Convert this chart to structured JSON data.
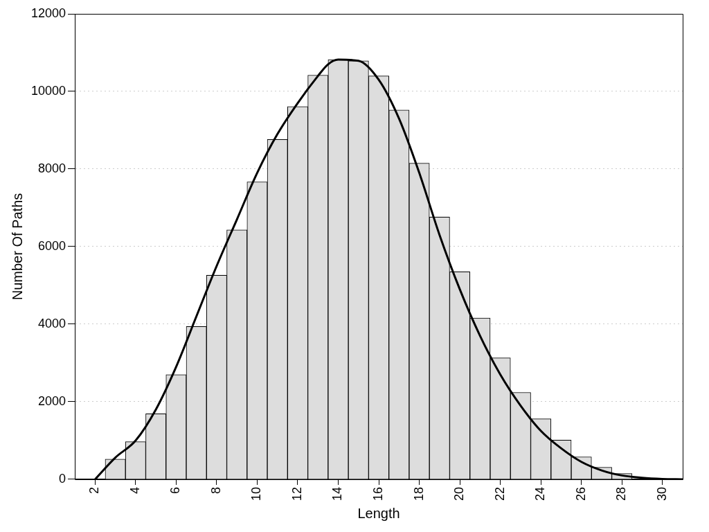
{
  "chart_data": {
    "type": "histogram",
    "xlabel": "Length",
    "ylabel": "Number Of Paths",
    "xlim": [
      1,
      31
    ],
    "xticks": [
      2,
      4,
      6,
      8,
      10,
      12,
      14,
      16,
      18,
      20,
      22,
      24,
      26,
      28,
      30
    ],
    "ylim": [
      0,
      12000
    ],
    "yticks": [
      0,
      2000,
      4000,
      6000,
      8000,
      10000,
      12000
    ],
    "grid": "y",
    "legend": false,
    "series": [
      {
        "type": "histogram",
        "color": "#dddddd",
        "bins": [
          2.5,
          3.5,
          4.5,
          5.5,
          6.5,
          7.5,
          8.5,
          9.5,
          10.5,
          11.5,
          12.5,
          13.5,
          14.5,
          15.5,
          16.5,
          17.5,
          18.5,
          19.5,
          20.5,
          21.5,
          22.5,
          23.5,
          24.5,
          25.5,
          26.5,
          27.5,
          28.5
        ],
        "values": [
          520,
          970,
          1690,
          2700,
          3940,
          5260,
          6430,
          7670,
          8760,
          9610,
          10420,
          10820,
          10790,
          10400,
          9520,
          8150,
          6760,
          5350,
          4160,
          3130,
          2240,
          1560,
          1010,
          580,
          310,
          150
        ]
      },
      {
        "type": "line",
        "color": "#000000",
        "x": [
          2,
          3,
          4,
          5,
          6,
          7,
          8,
          9,
          10,
          11,
          12,
          13,
          13.5,
          14,
          15,
          16,
          17,
          18,
          19,
          20,
          21,
          22,
          23,
          24,
          25,
          26,
          27,
          28,
          29,
          30,
          31
        ],
        "values": [
          0,
          560,
          1000,
          1800,
          2900,
          4200,
          5500,
          6700,
          7900,
          8900,
          9700,
          10400,
          10700,
          10820,
          10790,
          10300,
          9300,
          7900,
          6300,
          4900,
          3700,
          2700,
          1900,
          1250,
          800,
          450,
          230,
          100,
          40,
          10,
          0
        ]
      }
    ]
  }
}
